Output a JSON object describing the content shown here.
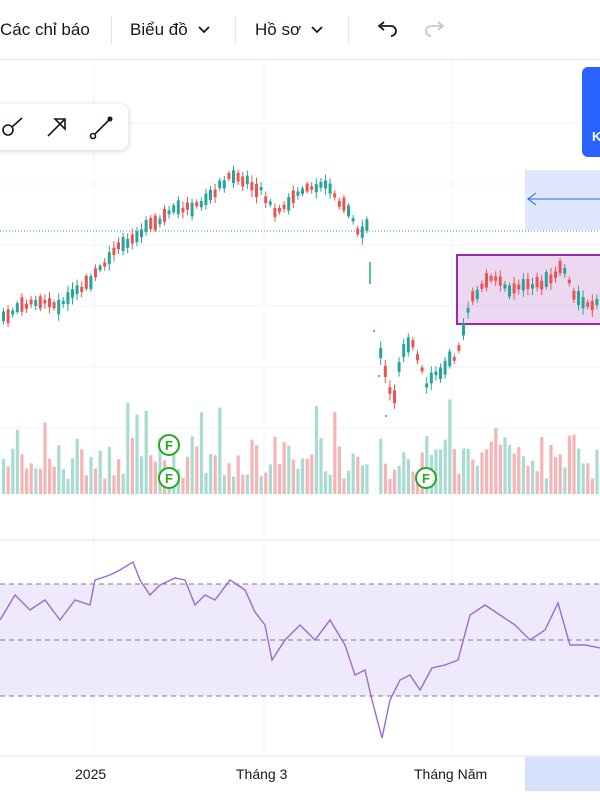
{
  "toolbar": {
    "indicators_label": "Các chỉ báo",
    "chart_label": "Biểu đồ",
    "profile_label": "Hồ sơ"
  },
  "events": [
    {
      "label": "F"
    },
    {
      "label": "F"
    },
    {
      "label": "F"
    }
  ],
  "side_button": {
    "label": "K"
  },
  "time_axis": {
    "labels": [
      "2025",
      "Tháng 3",
      "Tháng Năm"
    ]
  },
  "colors": {
    "up": "#26a69a",
    "down": "#ef5350",
    "rsi_line": "#9c6ad0",
    "rsi_band": "#eeeafb",
    "selection_box": "#9c27b0",
    "accent": "#2962ff"
  },
  "icons": [
    "chevron-down-icon",
    "undo-icon",
    "redo-icon",
    "brush-icon",
    "arrow-icon",
    "trend-line-icon"
  ]
}
